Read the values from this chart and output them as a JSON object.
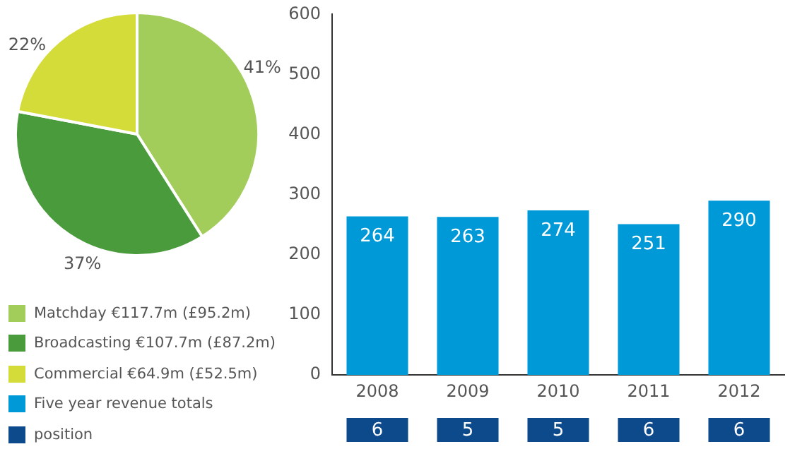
{
  "chart_data": [
    {
      "type": "pie",
      "categories": [
        "Matchday €117.7m (£95.2m)",
        "Broadcasting €107.7m (£87.2m)",
        "Commercial €64.9m (£52.5m)"
      ],
      "values": [
        41,
        37,
        22
      ],
      "colors": [
        "#a2cd5a",
        "#4a9b3c",
        "#d4dc3a"
      ],
      "value_labels": [
        "41%",
        "37%",
        "22%"
      ],
      "legend": "bottom"
    },
    {
      "type": "bar",
      "categories": [
        "2008",
        "2009",
        "2010",
        "2011",
        "2012"
      ],
      "series": [
        {
          "name": "Five year revenue totals",
          "color": "#0099d8",
          "values": [
            264,
            263,
            274,
            251,
            290
          ]
        }
      ],
      "ylim": [
        0,
        600
      ],
      "yticks": [
        0,
        100,
        200,
        300,
        400,
        500,
        600
      ],
      "data_labels": true,
      "legend": "left"
    },
    {
      "type": "other",
      "categories": [
        null,
        null,
        null,
        null,
        null
      ],
      "series": [
        {
          "name": "position",
          "color": "#0d4a8c",
          "values": [
            6,
            5,
            5,
            6,
            6
          ]
        }
      ],
      "data_labels": true,
      "legend": "left"
    }
  ]
}
